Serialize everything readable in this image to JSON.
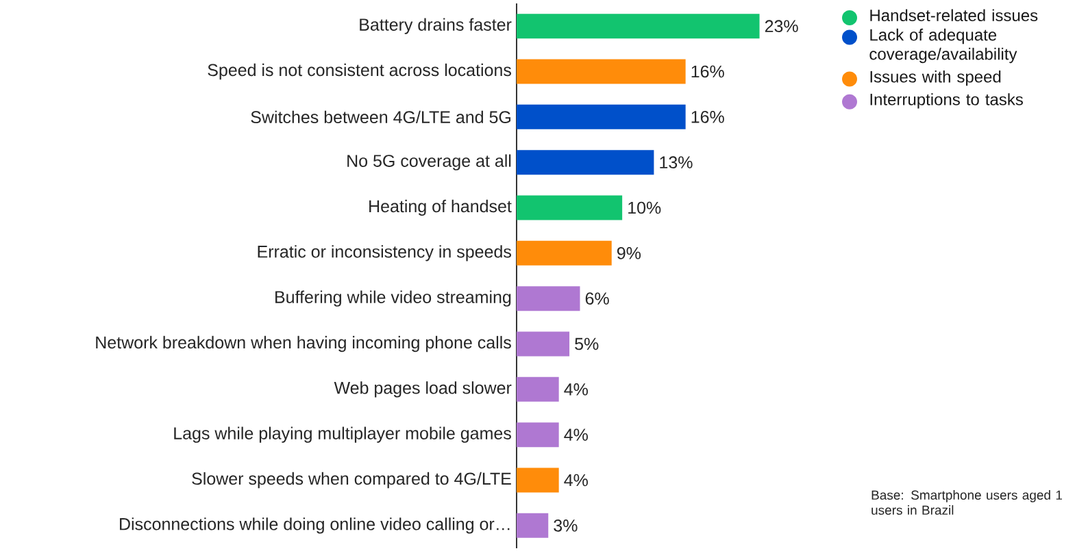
{
  "chart_data": {
    "type": "bar",
    "orientation": "horizontal",
    "categories": [
      "Battery drains faster",
      "Speed is not consistent across locations",
      "Switches between 4G/LTE and 5G",
      "No 5G coverage at all",
      "Heating of handset",
      "Erratic or inconsistency in speeds",
      "Buffering while video streaming",
      "Network breakdown when having incoming phone calls",
      "Web pages load slower",
      "Lags while playing multiplayer mobile games",
      "Slower speeds when compared to 4G/LTE",
      "Disconnections while doing online video calling or…"
    ],
    "series": [
      {
        "name": "Handset-related issues",
        "color": "#12c46f",
        "values": [
          23,
          null,
          null,
          null,
          10,
          null,
          null,
          null,
          null,
          null,
          null,
          null
        ],
        "value_labels": [
          "23%",
          null,
          null,
          null,
          "10%",
          null,
          null,
          null,
          null,
          null,
          null,
          null
        ]
      },
      {
        "name": "Lack of adequate coverage/availability",
        "color": "#0050ca",
        "values": [
          null,
          null,
          16,
          13,
          null,
          null,
          null,
          null,
          null,
          null,
          null,
          null
        ],
        "value_labels": [
          null,
          null,
          "16%",
          "13%",
          null,
          null,
          null,
          null,
          null,
          null,
          null,
          null
        ]
      },
      {
        "name": "Issues with speed",
        "color": "#ff8c0a",
        "values": [
          null,
          16,
          null,
          null,
          null,
          9,
          null,
          null,
          null,
          null,
          4,
          null
        ],
        "value_labels": [
          null,
          "16%",
          null,
          null,
          null,
          "9%",
          null,
          null,
          null,
          null,
          "4%",
          null
        ]
      },
      {
        "name": "Interruptions to tasks",
        "color": "#af78d2",
        "values": [
          null,
          null,
          null,
          null,
          null,
          null,
          6,
          5,
          4,
          4,
          null,
          3
        ],
        "value_labels": [
          null,
          null,
          null,
          null,
          null,
          null,
          "6%",
          "5%",
          "4%",
          "4%",
          null,
          "3%"
        ]
      }
    ],
    "tick_labels": "y",
    "legend": "top right",
    "annotations": [
      "Base: Smartphone users aged 1 users in Brazil"
    ]
  }
}
